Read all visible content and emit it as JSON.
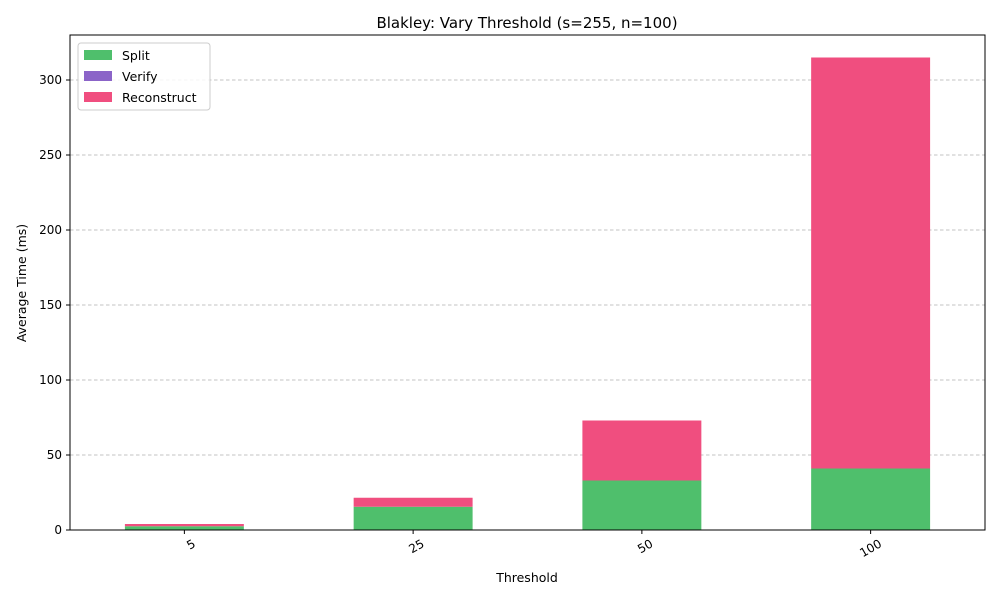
{
  "chart_data": {
    "type": "bar",
    "stacked": true,
    "title": "Blakley: Vary Threshold (s=255, n=100)",
    "xlabel": "Threshold",
    "ylabel": "Average Time (ms)",
    "categories": [
      "5",
      "25",
      "50",
      "100"
    ],
    "ylim": [
      0,
      330
    ],
    "yticks": [
      0,
      50,
      100,
      150,
      200,
      250,
      300
    ],
    "grid": "y-dashed",
    "legend_position": "top-left",
    "series": [
      {
        "name": "Split",
        "color": "#4fbf6c",
        "values": [
          2.5,
          15.5,
          33,
          41
        ]
      },
      {
        "name": "Verify",
        "color": "#8b64c8",
        "values": [
          0,
          0,
          0,
          0
        ]
      },
      {
        "name": "Reconstruct",
        "color": "#f04e7f",
        "values": [
          1.5,
          6,
          40,
          274
        ]
      }
    ]
  }
}
